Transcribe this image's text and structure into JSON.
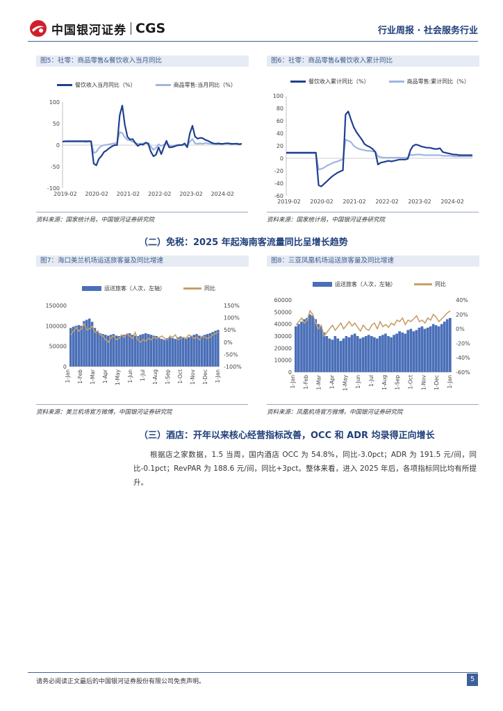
{
  "header": {
    "logo_text": "中国银河证券",
    "logo_cgs": "CGS",
    "right_text": "行业周报 · 社会服务行业"
  },
  "figures": {
    "fig5": {
      "title": "图5：社零：商品零售&餐饮收入当月同比",
      "legend": [
        "餐饮收入当月同比（%）",
        "商品零售:当月同比（%）"
      ],
      "source": "资料来源：国家统计局，中国银河证券研究院"
    },
    "fig6": {
      "title": "图6：社零：商品零售&餐饮收入累计同比",
      "legend": [
        "餐饮收入累计同比（%）",
        "商品零售:累计同比（%）"
      ],
      "source": "资料来源：国家统计局，中国银河证券研究院"
    },
    "fig7": {
      "title": "图7：海口美兰机场运送旅客量及同比增速",
      "legend": [
        "运送旅客（人次，左轴）",
        "同比"
      ],
      "source": "资料来源：美兰机场官方微博，中国银河证券研究院"
    },
    "fig8": {
      "title": "图8：三亚凤凰机场运送旅客量及同比增速",
      "legend": [
        "运送旅客（人次，左轴）",
        "同比"
      ],
      "source": "资料来源：凤凰机场官方微博，中国银河证券研究院"
    }
  },
  "sections": {
    "s2_title": "（二）免税：2025 年起海南客流量同比呈增长趋势",
    "s3_title": "（三）酒店：开年以来核心经营指标改善，OCC 和 ADR 均录得正向增长",
    "s3_body": "根据店之家数据，1.5 当周，国内酒店 OCC 为 54.8%，同比-3.0pct；ADR 为 191.5 元/间，同比-0.1pct；RevPAR 为 188.6 元/间，同比+3pct。整体来看，进入 2025 年后，各项指标同比均有所提升。"
  },
  "footer": {
    "disclaimer": "请务必阅读正文最后的中国银河证券股份有限公司免责声明。",
    "page": "5"
  },
  "colors": {
    "dark_blue": "#1f3f8f",
    "light_blue": "#9fb4e0",
    "bar_blue": "#4a6fb8",
    "gold": "#c4a06a",
    "brand_red": "#d0202a"
  },
  "chart_data": [
    {
      "id": "fig5",
      "type": "line",
      "x_ticks": [
        "2019-02",
        "2020-02",
        "2021-02",
        "2022-02",
        "2023-02",
        "2024-02"
      ],
      "ylim": [
        -100,
        100
      ],
      "y_ticks": [
        100,
        50,
        0,
        -50,
        -100
      ],
      "series": [
        {
          "name": "餐饮收入当月同比（%）",
          "color": "#1f3f8f",
          "values": [
            8,
            9,
            9,
            9,
            9,
            9,
            9,
            9,
            9,
            9,
            9,
            9,
            -43,
            -47,
            -32,
            -25,
            -16,
            -12,
            -7,
            -3,
            0,
            0,
            69,
            92,
            47,
            19,
            13,
            14,
            5,
            -2,
            2,
            1,
            6,
            3,
            -15,
            -26,
            -22,
            -5,
            -21,
            -5,
            10,
            -5,
            -5,
            -3,
            -1,
            0,
            0,
            4,
            -5,
            27,
            45,
            20,
            15,
            17,
            16,
            12,
            10,
            7,
            4,
            3,
            4,
            3,
            3,
            4,
            4,
            3,
            3,
            3,
            2,
            3
          ]
        },
        {
          "name": "商品零售:当月同比（%）",
          "color": "#9fb4e0",
          "values": [
            8,
            8,
            8,
            8,
            8,
            8,
            8,
            8,
            8,
            7,
            8,
            8,
            -18,
            -16,
            -7,
            -2,
            0,
            1,
            2,
            3,
            4,
            5,
            30,
            28,
            18,
            12,
            11,
            8,
            5,
            3,
            3,
            4,
            4,
            5,
            -3,
            -11,
            -6,
            2,
            -2,
            1,
            4,
            0,
            -3,
            -1,
            0,
            1,
            0,
            1,
            -2,
            8,
            14,
            4,
            3,
            4,
            3,
            5,
            4,
            3,
            3,
            3,
            2,
            2,
            3,
            4,
            3,
            2,
            3,
            4,
            3,
            3
          ]
        }
      ]
    },
    {
      "id": "fig6",
      "type": "line",
      "x_ticks": [
        "2019-02",
        "2020-02",
        "2021-02",
        "2022-02",
        "2023-02",
        "2024-02"
      ],
      "ylim": [
        -60,
        100
      ],
      "y_ticks": [
        100,
        80,
        60,
        40,
        20,
        0,
        -20,
        -40,
        -60
      ],
      "series": [
        {
          "name": "餐饮收入累计同比（%）",
          "color": "#1f3f8f",
          "values": [
            9,
            9,
            9,
            9,
            9,
            9,
            9,
            9,
            9,
            9,
            9,
            9,
            -43,
            -45,
            -41,
            -37,
            -33,
            -29,
            -26,
            -23,
            -21,
            -19,
            70,
            75,
            62,
            50,
            42,
            36,
            30,
            23,
            20,
            18,
            15,
            10,
            -10,
            -7,
            -6,
            -5,
            -4,
            -5,
            -4,
            -3,
            -2,
            -2,
            -2,
            -1,
            13,
            20,
            22,
            21,
            19,
            18,
            17,
            17,
            16,
            15,
            15,
            16,
            10,
            9,
            8,
            7,
            6,
            6,
            5,
            5,
            5,
            5,
            5,
            5
          ]
        },
        {
          "name": "商品零售:累计同比（%）",
          "color": "#9fb4e0",
          "values": [
            8,
            8,
            8,
            8,
            8,
            8,
            8,
            8,
            8,
            8,
            8,
            8,
            -18,
            -17,
            -15,
            -12,
            -10,
            -8,
            -6,
            -5,
            -3,
            -2,
            30,
            28,
            26,
            20,
            17,
            15,
            14,
            13,
            12,
            12,
            11,
            11,
            3,
            2,
            1,
            1,
            1,
            1,
            1,
            1,
            1,
            1,
            1,
            1,
            6,
            5,
            6,
            6,
            6,
            5,
            5,
            5,
            5,
            5,
            5,
            5,
            4,
            4,
            4,
            4,
            3,
            3,
            3,
            3,
            3,
            3,
            3,
            3
          ]
        }
      ]
    },
    {
      "id": "fig7",
      "type": "bar+line",
      "x_ticks": [
        "1-Jan",
        "1-Feb",
        "1-Mar",
        "1-Apr",
        "1-May",
        "1-Jun",
        "1-Jul",
        "1-Aug",
        "1-Sep",
        "1-Oct",
        "1-Nov",
        "1-Dec",
        "1-Jan"
      ],
      "left_ylim": [
        0,
        150000
      ],
      "left_ticks": [
        150000,
        100000,
        50000,
        0
      ],
      "right_ylim": [
        -100,
        150
      ],
      "right_ticks": [
        "150%",
        "100%",
        "50%",
        "0%",
        "-50%",
        "-100%"
      ],
      "bar_series": {
        "name": "运送旅客（人次，左轴）",
        "color": "#4a6fb8",
        "values": [
          95000,
          98000,
          100000,
          102000,
          100000,
          112000,
          115000,
          118000,
          110000,
          95000,
          88000,
          82000,
          80000,
          78000,
          76000,
          78000,
          80000,
          76000,
          75000,
          77000,
          78000,
          80000,
          82000,
          78000,
          76000,
          75000,
          78000,
          80000,
          82000,
          80000,
          78000,
          76000,
          75000,
          70000,
          68000,
          66000,
          70000,
          72000,
          70000,
          68000,
          72000,
          74000,
          70000,
          68000,
          72000,
          75000,
          78000,
          80000,
          76000,
          74000,
          78000,
          80000,
          82000,
          85000,
          88000,
          90000
        ]
      },
      "line_series": {
        "name": "同比",
        "color": "#c4a06a",
        "values": [
          30,
          45,
          60,
          45,
          55,
          75,
          50,
          55,
          65,
          40,
          45,
          30,
          25,
          10,
          0,
          20,
          25,
          10,
          15,
          30,
          20,
          35,
          25,
          15,
          40,
          10,
          0,
          10,
          5,
          15,
          10,
          20,
          15,
          20,
          25,
          15,
          10,
          25,
          20,
          30,
          10,
          15,
          20,
          15,
          30,
          25,
          15,
          20,
          10,
          25,
          20,
          15,
          20,
          30,
          35,
          40
        ]
      }
    },
    {
      "id": "fig8",
      "type": "bar+line",
      "x_ticks": [
        "1-Jan",
        "1-Feb",
        "1-Mar",
        "1-Apr",
        "1-May",
        "1-Jun",
        "1-Jul",
        "1-Aug",
        "1-Sep",
        "1-Oct",
        "1-Nov",
        "1-Dec",
        "1-Jan"
      ],
      "left_ylim": [
        0,
        60000
      ],
      "left_ticks": [
        60000,
        50000,
        40000,
        30000,
        20000,
        10000,
        0
      ],
      "right_ylim": [
        -60,
        40
      ],
      "right_ticks": [
        "40%",
        "20%",
        "0%",
        "-20%",
        "-40%",
        "-60%"
      ],
      "bar_series": {
        "name": "运送旅客（人次，左轴）",
        "color": "#4a6fb8",
        "values": [
          38000,
          40000,
          42000,
          44000,
          45000,
          48000,
          47000,
          44000,
          40000,
          38000,
          33000,
          30000,
          28000,
          27000,
          30000,
          28000,
          26000,
          28000,
          30000,
          29000,
          31000,
          32000,
          30000,
          28000,
          29000,
          30000,
          31000,
          30000,
          29000,
          28000,
          30000,
          31000,
          32000,
          30000,
          29000,
          31000,
          32000,
          34000,
          33000,
          32000,
          35000,
          36000,
          34000,
          35000,
          37000,
          38000,
          36000,
          37000,
          38000,
          40000,
          39000,
          38000,
          40000,
          42000,
          44000,
          45000
        ]
      },
      "line_series": {
        "name": "同比",
        "color": "#c4a06a",
        "values": [
          5,
          10,
          15,
          8,
          12,
          25,
          20,
          8,
          0,
          5,
          -10,
          -5,
          0,
          5,
          -2,
          3,
          8,
          0,
          5,
          10,
          4,
          8,
          2,
          -3,
          5,
          0,
          -2,
          5,
          8,
          0,
          10,
          3,
          6,
          2,
          8,
          5,
          12,
          10,
          15,
          6,
          12,
          10,
          14,
          18,
          10,
          12,
          8,
          15,
          12,
          20,
          16,
          10,
          14,
          18,
          22,
          25
        ]
      }
    }
  ]
}
